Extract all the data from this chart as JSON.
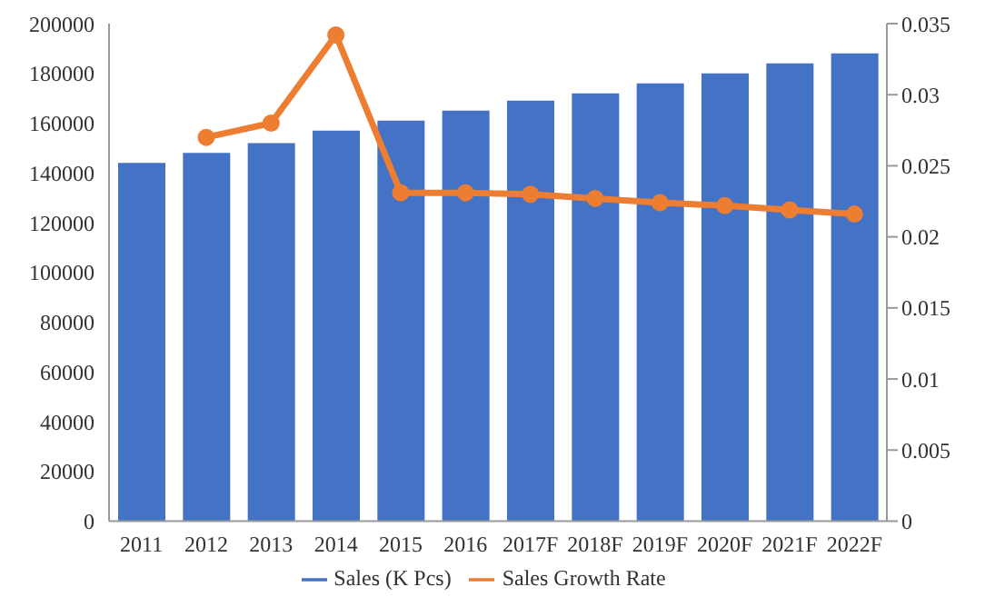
{
  "chart_data": {
    "type": "bar",
    "categories": [
      "2011",
      "2012",
      "2013",
      "2014",
      "2015",
      "2016",
      "2017F",
      "2018F",
      "2019F",
      "2020F",
      "2021F",
      "2022F"
    ],
    "series": [
      {
        "name": "Sales (K Pcs)",
        "color": "#4472c4",
        "values": [
          144000,
          148000,
          152000,
          157000,
          161000,
          165000,
          169000,
          172000,
          176000,
          180000,
          184000,
          188000
        ]
      },
      {
        "name": "Sales Growth Rate",
        "type": "line",
        "axis": "y2",
        "color": "#ed7d31",
        "values": [
          null,
          0.027,
          0.028,
          0.0342,
          0.0231,
          0.0231,
          0.023,
          0.0227,
          0.0224,
          0.0222,
          0.0219,
          0.0216
        ]
      }
    ],
    "ylim": [
      0,
      200000
    ],
    "yticks": [
      0,
      20000,
      40000,
      60000,
      80000,
      100000,
      120000,
      140000,
      160000,
      180000,
      200000
    ],
    "y2lim": [
      0,
      0.035
    ],
    "y2ticks": [
      0,
      0.005,
      0.01,
      0.015,
      0.02,
      0.025,
      0.03,
      0.035
    ],
    "grid": false,
    "legend": "bottom",
    "marker": "circle"
  }
}
